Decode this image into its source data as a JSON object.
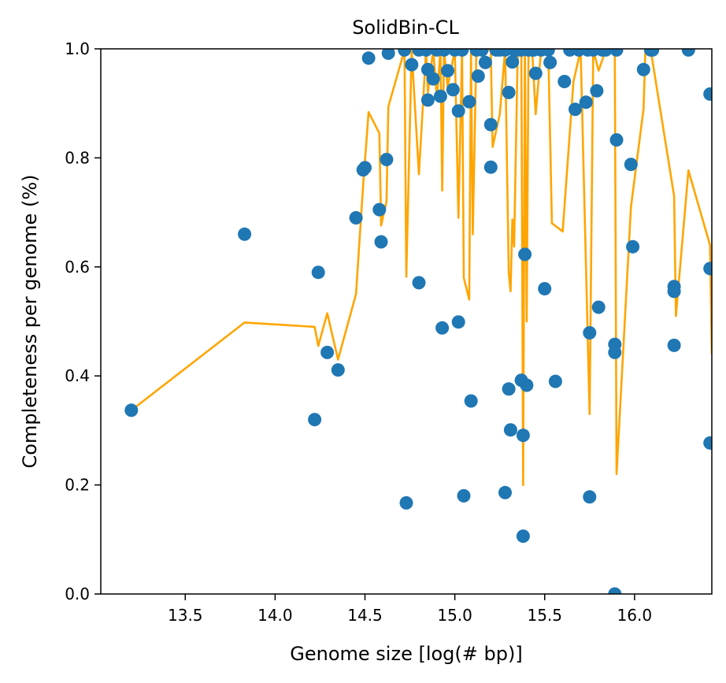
{
  "chart_data": {
    "type": "scatter",
    "title": "SolidBin-CL",
    "xlabel": "Genome size [log(# bp)]",
    "ylabel": "Completeness per genome (%)",
    "xlim": [
      13.03,
      16.43
    ],
    "ylim": [
      0.0,
      1.0
    ],
    "x_ticks": [
      13.5,
      14.0,
      14.5,
      15.0,
      15.5,
      16.0
    ],
    "x_tick_labels": [
      "13.5",
      "14.0",
      "14.5",
      "15.0",
      "15.5",
      "16.0"
    ],
    "y_ticks": [
      0.0,
      0.2,
      0.4,
      0.6,
      0.8,
      1.0
    ],
    "y_tick_labels": [
      "0.0",
      "0.2",
      "0.4",
      "0.6",
      "0.8",
      "1.0"
    ],
    "grid": false,
    "legend": "none",
    "colors": {
      "points": "#1f77b4",
      "line": "#ffa500"
    },
    "series": [
      {
        "kind": "scatter",
        "points": [
          [
            13.2,
            0.337
          ],
          [
            13.83,
            0.66
          ],
          [
            14.22,
            0.32
          ],
          [
            14.24,
            0.59
          ],
          [
            14.29,
            0.443
          ],
          [
            14.35,
            0.411
          ],
          [
            14.45,
            0.69
          ],
          [
            14.49,
            0.778
          ],
          [
            14.5,
            0.782
          ],
          [
            14.52,
            0.983
          ],
          [
            14.58,
            0.705
          ],
          [
            14.59,
            0.646
          ],
          [
            14.62,
            0.797
          ],
          [
            14.63,
            0.992
          ],
          [
            14.72,
            0.998
          ],
          [
            14.73,
            0.167
          ],
          [
            14.76,
            0.971
          ],
          [
            14.8,
            0.571
          ],
          [
            14.8,
            0.998
          ],
          [
            14.84,
            0.998
          ],
          [
            14.85,
            0.962
          ],
          [
            14.85,
            0.906
          ],
          [
            14.88,
            0.945
          ],
          [
            14.9,
            0.998
          ],
          [
            14.92,
            0.913
          ],
          [
            14.93,
            0.488
          ],
          [
            14.94,
            0.998
          ],
          [
            14.96,
            0.96
          ],
          [
            14.99,
            0.925
          ],
          [
            15.0,
            0.998
          ],
          [
            15.02,
            0.886
          ],
          [
            15.02,
            0.499
          ],
          [
            15.04,
            0.998
          ],
          [
            15.05,
            0.18
          ],
          [
            15.08,
            0.903
          ],
          [
            15.09,
            0.354
          ],
          [
            15.12,
            0.998
          ],
          [
            15.13,
            0.95
          ],
          [
            15.15,
            0.998
          ],
          [
            15.17,
            0.975
          ],
          [
            15.2,
            0.861
          ],
          [
            15.2,
            0.783
          ],
          [
            15.23,
            0.998
          ],
          [
            15.25,
            0.998
          ],
          [
            15.28,
            0.998
          ],
          [
            15.28,
            0.186
          ],
          [
            15.3,
            0.92
          ],
          [
            15.3,
            0.376
          ],
          [
            15.31,
            0.301
          ],
          [
            15.32,
            0.976
          ],
          [
            15.33,
            0.998
          ],
          [
            15.35,
            0.998
          ],
          [
            15.37,
            0.998
          ],
          [
            15.37,
            0.392
          ],
          [
            15.38,
            0.291
          ],
          [
            15.38,
            0.106
          ],
          [
            15.39,
            0.623
          ],
          [
            15.4,
            0.383
          ],
          [
            15.41,
            0.998
          ],
          [
            15.43,
            0.998
          ],
          [
            15.44,
            0.998
          ],
          [
            15.45,
            0.955
          ],
          [
            15.48,
            0.998
          ],
          [
            15.5,
            0.56
          ],
          [
            15.52,
            0.998
          ],
          [
            15.53,
            0.975
          ],
          [
            15.56,
            0.39
          ],
          [
            15.61,
            0.94
          ],
          [
            15.64,
            0.998
          ],
          [
            15.67,
            0.889
          ],
          [
            15.69,
            0.998
          ],
          [
            15.73,
            0.902
          ],
          [
            15.74,
            0.998
          ],
          [
            15.75,
            0.479
          ],
          [
            15.75,
            0.178
          ],
          [
            15.77,
            0.998
          ],
          [
            15.79,
            0.923
          ],
          [
            15.8,
            0.526
          ],
          [
            15.82,
            0.998
          ],
          [
            15.84,
            0.998
          ],
          [
            15.89,
            0.458
          ],
          [
            15.89,
            0.443
          ],
          [
            15.89,
            0.0
          ],
          [
            15.9,
            0.833
          ],
          [
            15.9,
            0.998
          ],
          [
            15.98,
            0.788
          ],
          [
            15.99,
            0.637
          ],
          [
            16.05,
            0.962
          ],
          [
            16.09,
            0.998
          ],
          [
            16.1,
            0.998
          ],
          [
            16.22,
            0.564
          ],
          [
            16.22,
            0.555
          ],
          [
            16.22,
            0.456
          ],
          [
            16.3,
            0.998
          ],
          [
            16.42,
            0.917
          ],
          [
            16.42,
            0.597
          ],
          [
            16.42,
            0.277
          ]
        ]
      },
      {
        "kind": "line",
        "points": [
          [
            13.2,
            0.337
          ],
          [
            13.83,
            0.498
          ],
          [
            14.22,
            0.49
          ],
          [
            14.24,
            0.455
          ],
          [
            14.29,
            0.515
          ],
          [
            14.35,
            0.43
          ],
          [
            14.45,
            0.55
          ],
          [
            14.49,
            0.75
          ],
          [
            14.52,
            0.884
          ],
          [
            14.58,
            0.845
          ],
          [
            14.59,
            0.676
          ],
          [
            14.62,
            0.72
          ],
          [
            14.63,
            0.894
          ],
          [
            14.72,
            0.998
          ],
          [
            14.73,
            0.582
          ],
          [
            14.76,
            0.998
          ],
          [
            14.8,
            0.77
          ],
          [
            14.84,
            0.998
          ],
          [
            14.85,
            0.92
          ],
          [
            14.88,
            0.998
          ],
          [
            14.9,
            0.91
          ],
          [
            14.92,
            0.998
          ],
          [
            14.93,
            0.74
          ],
          [
            14.94,
            0.998
          ],
          [
            14.96,
            0.93
          ],
          [
            15.0,
            0.998
          ],
          [
            15.02,
            0.69
          ],
          [
            15.04,
            0.998
          ],
          [
            15.05,
            0.58
          ],
          [
            15.08,
            0.54
          ],
          [
            15.09,
            0.998
          ],
          [
            15.1,
            0.66
          ],
          [
            15.12,
            0.998
          ],
          [
            15.15,
            0.998
          ],
          [
            15.2,
            0.998
          ],
          [
            15.21,
            0.82
          ],
          [
            15.25,
            0.88
          ],
          [
            15.28,
            0.998
          ],
          [
            15.3,
            0.59
          ],
          [
            15.31,
            0.555
          ],
          [
            15.32,
            0.687
          ],
          [
            15.33,
            0.637
          ],
          [
            15.35,
            0.998
          ],
          [
            15.37,
            0.998
          ],
          [
            15.38,
            0.2
          ],
          [
            15.39,
            0.998
          ],
          [
            15.4,
            0.5
          ],
          [
            15.41,
            0.998
          ],
          [
            15.43,
            0.998
          ],
          [
            15.45,
            0.88
          ],
          [
            15.48,
            0.998
          ],
          [
            15.52,
            0.998
          ],
          [
            15.54,
            0.68
          ],
          [
            15.6,
            0.665
          ],
          [
            15.66,
            0.94
          ],
          [
            15.7,
            0.998
          ],
          [
            15.75,
            0.33
          ],
          [
            15.77,
            0.998
          ],
          [
            15.8,
            0.96
          ],
          [
            15.84,
            0.998
          ],
          [
            15.89,
            0.998
          ],
          [
            15.9,
            0.22
          ],
          [
            15.98,
            0.71
          ],
          [
            16.05,
            0.89
          ],
          [
            16.06,
            0.998
          ],
          [
            16.09,
            0.998
          ],
          [
            16.22,
            0.73
          ],
          [
            16.23,
            0.51
          ],
          [
            16.3,
            0.777
          ],
          [
            16.42,
            0.64
          ],
          [
            16.43,
            0.44
          ]
        ]
      }
    ]
  }
}
